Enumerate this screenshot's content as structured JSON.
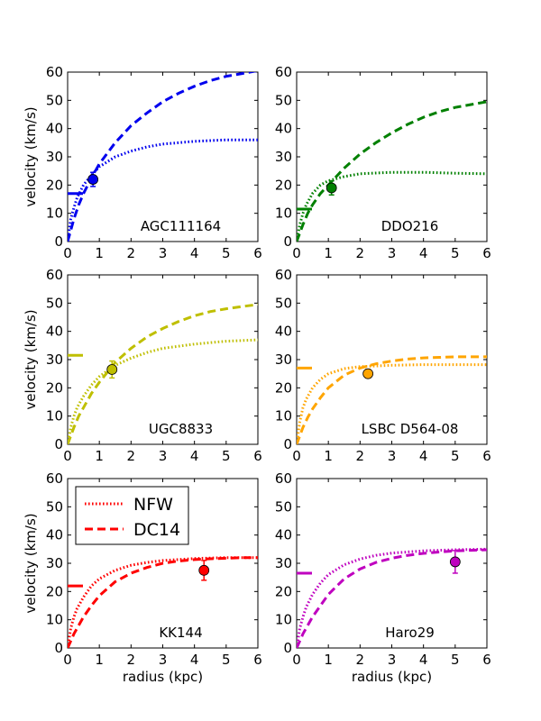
{
  "chart_data": [
    {
      "type": "line",
      "label": "AGC111164",
      "color": "#0000ee",
      "xlim": [
        0,
        6
      ],
      "ylim": [
        0,
        60
      ],
      "xticks": [
        0,
        1,
        2,
        3,
        4,
        5,
        6
      ],
      "yticks": [
        0,
        10,
        20,
        30,
        40,
        50,
        60
      ],
      "ylabel": "velocity  (km/s)",
      "xlabel": "",
      "nfw": {
        "x": [
          0,
          0.1,
          0.2,
          0.3,
          0.5,
          0.75,
          1,
          1.5,
          2,
          2.5,
          3,
          4,
          5,
          6
        ],
        "y": [
          0,
          8,
          12,
          15.5,
          20,
          23.5,
          26.5,
          30,
          32,
          33.5,
          34.5,
          35.5,
          36,
          36
        ]
      },
      "dc14": {
        "x": [
          0,
          0.1,
          0.2,
          0.35,
          0.5,
          0.75,
          1,
          1.5,
          2,
          2.5,
          3,
          3.5,
          4,
          4.5,
          5,
          5.5,
          6
        ],
        "y": [
          0,
          4,
          8,
          13,
          17,
          22.5,
          27.5,
          35,
          41,
          45.5,
          49.5,
          52.5,
          55,
          57,
          58.5,
          59.5,
          60.5
        ]
      },
      "point": {
        "x": 0.8,
        "y": 22,
        "err": 2.5
      },
      "marker_y": 17
    },
    {
      "type": "line",
      "label": "DDO216",
      "color": "#008000",
      "xlim": [
        0,
        6
      ],
      "ylim": [
        0,
        60
      ],
      "xticks": [
        0,
        1,
        2,
        3,
        4,
        5,
        6
      ],
      "yticks": [
        0,
        10,
        20,
        30,
        40,
        50,
        60
      ],
      "ylabel": "",
      "xlabel": "",
      "nfw": {
        "x": [
          0,
          0.1,
          0.2,
          0.3,
          0.5,
          0.75,
          1,
          1.5,
          2,
          3,
          4,
          5,
          6
        ],
        "y": [
          0,
          6,
          10,
          13,
          17,
          20,
          21.5,
          23,
          24,
          24.5,
          24.5,
          24.2,
          24
        ]
      },
      "dc14": {
        "x": [
          0,
          0.1,
          0.2,
          0.35,
          0.5,
          0.75,
          1,
          1.5,
          2,
          2.5,
          3,
          3.5,
          4,
          4.5,
          5,
          5.5,
          6
        ],
        "y": [
          0,
          3,
          6,
          10,
          13,
          17,
          20,
          26,
          31,
          35,
          38.5,
          41.5,
          44,
          46,
          47.5,
          48.5,
          49.5
        ]
      },
      "point": {
        "x": 1.1,
        "y": 19,
        "err": 2.5
      },
      "marker_y": 11.5
    },
    {
      "type": "line",
      "label": "UGC8833",
      "color": "#bfbf00",
      "xlim": [
        0,
        6
      ],
      "ylim": [
        0,
        60
      ],
      "xticks": [
        0,
        1,
        2,
        3,
        4,
        5,
        6
      ],
      "yticks": [
        0,
        10,
        20,
        30,
        40,
        50,
        60
      ],
      "ylabel": "velocity  (km/s)",
      "xlabel": "",
      "nfw": {
        "x": [
          0,
          0.1,
          0.2,
          0.3,
          0.5,
          0.75,
          1,
          1.5,
          2,
          2.5,
          3,
          4,
          5,
          6
        ],
        "y": [
          0,
          6,
          10,
          13,
          17,
          21,
          24,
          28,
          30.5,
          32.5,
          34,
          35.5,
          36.5,
          37
        ]
      },
      "dc14": {
        "x": [
          0,
          0.1,
          0.2,
          0.35,
          0.5,
          0.75,
          1,
          1.5,
          2,
          2.5,
          3,
          3.5,
          4,
          4.5,
          5,
          5.5,
          6
        ],
        "y": [
          0,
          3,
          6,
          10,
          13,
          18,
          22,
          29,
          34,
          38,
          41,
          43.5,
          45.5,
          47,
          48,
          48.8,
          49.5
        ]
      },
      "point": {
        "x": 1.4,
        "y": 26.5,
        "err": 3.0
      },
      "marker_y": 31.5
    },
    {
      "type": "line",
      "label": "LSBC D564-08",
      "color": "#ffa500",
      "xlim": [
        0,
        6
      ],
      "ylim": [
        0,
        60
      ],
      "xticks": [
        0,
        1,
        2,
        3,
        4,
        5,
        6
      ],
      "yticks": [
        0,
        10,
        20,
        30,
        40,
        50,
        60
      ],
      "ylabel": "",
      "xlabel": "",
      "nfw": {
        "x": [
          0,
          0.1,
          0.2,
          0.3,
          0.5,
          0.75,
          1,
          1.5,
          2,
          3,
          4,
          5,
          6
        ],
        "y": [
          0,
          8,
          13,
          16,
          20,
          23,
          25,
          26.8,
          27.5,
          28,
          28.2,
          28.2,
          28.2
        ]
      },
      "dc14": {
        "x": [
          0,
          0.1,
          0.2,
          0.35,
          0.5,
          0.75,
          1,
          1.5,
          2,
          2.5,
          3,
          3.5,
          4,
          4.5,
          5,
          5.5,
          6
        ],
        "y": [
          0,
          3,
          6,
          9.5,
          12.5,
          16.5,
          20,
          24.5,
          27,
          28.5,
          29.5,
          30.2,
          30.6,
          30.8,
          31,
          31,
          31
        ]
      },
      "point": {
        "x": 2.25,
        "y": 25,
        "err": 1.5
      },
      "marker_y": 27
    },
    {
      "type": "line",
      "label": "KK144",
      "color": "#ff0000",
      "xlim": [
        0,
        6
      ],
      "ylim": [
        0,
        60
      ],
      "xticks": [
        0,
        1,
        2,
        3,
        4,
        5,
        6
      ],
      "yticks": [
        0,
        10,
        20,
        30,
        40,
        50,
        60
      ],
      "ylabel": "velocity  (km/s)",
      "xlabel": "radius  (kpc)",
      "nfw": {
        "x": [
          0,
          0.1,
          0.2,
          0.3,
          0.5,
          0.75,
          1,
          1.5,
          2,
          2.5,
          3,
          4,
          5,
          6
        ],
        "y": [
          0,
          7,
          11,
          14,
          18,
          22,
          24.5,
          27.5,
          29.3,
          30.3,
          31,
          31.7,
          32,
          32
        ]
      },
      "dc14": {
        "x": [
          0,
          0.1,
          0.2,
          0.35,
          0.5,
          0.75,
          1,
          1.5,
          2,
          2.5,
          3,
          3.5,
          4,
          4.5,
          5,
          5.5,
          6
        ],
        "y": [
          0,
          2.5,
          5,
          8,
          11,
          15,
          18.5,
          23.5,
          26.5,
          28.5,
          30,
          30.8,
          31.3,
          31.6,
          31.8,
          32,
          32
        ]
      },
      "point": {
        "x": 4.3,
        "y": 27.5,
        "err": 3.5
      },
      "marker_y": 22,
      "legend": {
        "position": "upper-left",
        "entries": [
          {
            "label": "NFW",
            "style": "dotted"
          },
          {
            "label": "DC14",
            "style": "dashed"
          }
        ]
      }
    },
    {
      "type": "line",
      "label": "Haro29",
      "color": "#bf00bf",
      "xlim": [
        0,
        6
      ],
      "ylim": [
        0,
        60
      ],
      "xticks": [
        0,
        1,
        2,
        3,
        4,
        5,
        6
      ],
      "yticks": [
        0,
        10,
        20,
        30,
        40,
        50,
        60
      ],
      "ylabel": "",
      "xlabel": "radius  (kpc)",
      "nfw": {
        "x": [
          0,
          0.1,
          0.2,
          0.3,
          0.5,
          0.75,
          1,
          1.5,
          2,
          2.5,
          3,
          4,
          5,
          6
        ],
        "y": [
          0,
          7,
          11,
          14.5,
          19,
          23,
          26,
          29.5,
          31.5,
          32.8,
          33.6,
          34.4,
          34.8,
          35
        ]
      },
      "dc14": {
        "x": [
          0,
          0.1,
          0.2,
          0.35,
          0.5,
          0.75,
          1,
          1.5,
          2,
          2.5,
          3,
          3.5,
          4,
          4.5,
          5,
          5.5,
          6
        ],
        "y": [
          0,
          2.5,
          5,
          8,
          11,
          15,
          19,
          24.5,
          28,
          30.3,
          31.8,
          32.8,
          33.5,
          34,
          34.4,
          34.6,
          34.8
        ]
      },
      "point": {
        "x": 5.0,
        "y": 30.5,
        "err": 4.0
      },
      "marker_y": 26.5
    }
  ]
}
